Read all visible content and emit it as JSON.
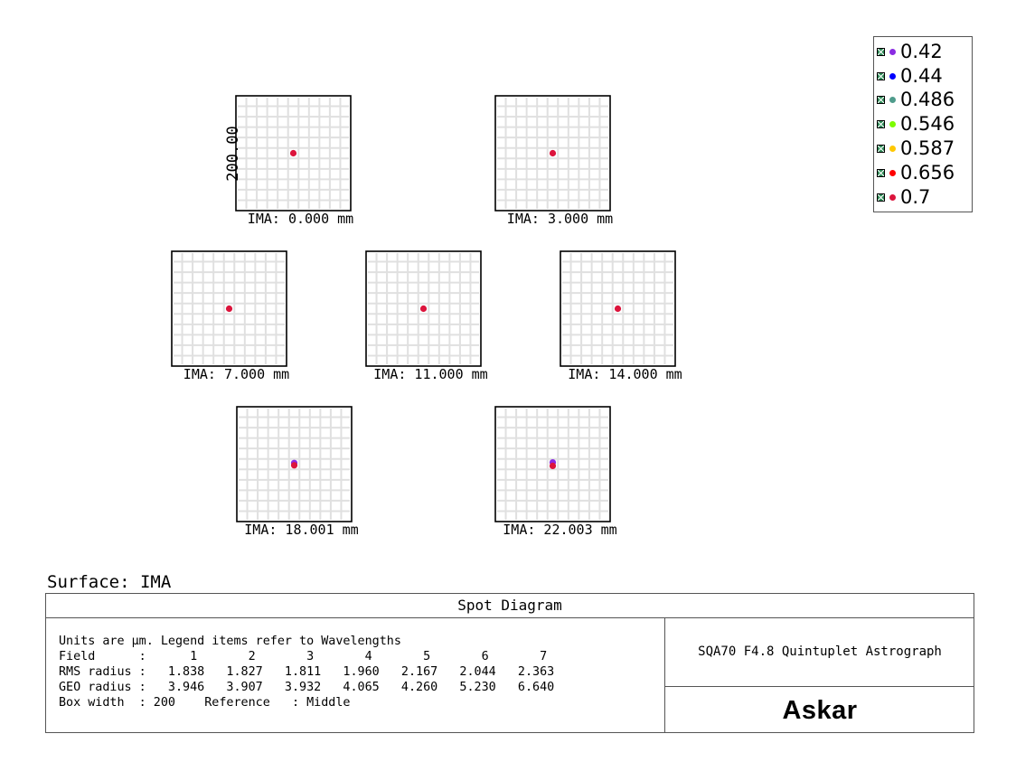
{
  "surface_label": "Surface: IMA",
  "panel": {
    "title": "Spot Diagram",
    "lines": [
      "Units are µm. Legend items refer to Wavelengths",
      "Field      :      1       2       3       4       5       6       7",
      "RMS radius :   1.838   1.827   1.811   1.960   2.167   2.044   2.363",
      "GEO radius :   3.946   3.907   3.932   4.065   4.260   5.230   6.640",
      "Box width  : 200    Reference   : Middle"
    ],
    "lens_name": "SQA70 F4.8 Quintuplet Astrograph",
    "brand": "Askar"
  },
  "legend": [
    {
      "label": "0.42",
      "color": "#8a2be2"
    },
    {
      "label": "0.44",
      "color": "#0000ff"
    },
    {
      "label": "0.486",
      "color": "#4f9c8c"
    },
    {
      "label": "0.546",
      "color": "#7cfc00"
    },
    {
      "label": "0.587",
      "color": "#ffc800"
    },
    {
      "label": "0.656",
      "color": "#ff0000"
    },
    {
      "label": "0.7",
      "color": "#dc143c"
    }
  ],
  "chart_data": {
    "type": "scatter",
    "box_width_um": 200,
    "axis_label": "200.00",
    "grid": true,
    "legend_position": "top-right",
    "fields": [
      {
        "label": "IMA: 0.000 mm",
        "spots": [
          [
            0,
            0
          ]
        ]
      },
      {
        "label": "IMA: 3.000 mm",
        "spots": [
          [
            0,
            0
          ]
        ]
      },
      {
        "label": "IMA: 7.000 mm",
        "spots": [
          [
            0,
            0
          ]
        ]
      },
      {
        "label": "IMA: 11.000 mm",
        "spots": [
          [
            0,
            0
          ]
        ]
      },
      {
        "label": "IMA: 14.000 mm",
        "spots": [
          [
            0,
            0
          ]
        ]
      },
      {
        "label": "IMA: 18.001 mm",
        "spots": [
          [
            0,
            2
          ],
          [
            0,
            -2
          ]
        ]
      },
      {
        "label": "IMA: 22.003 mm",
        "spots": [
          [
            0,
            3
          ],
          [
            0,
            -3
          ]
        ]
      }
    ]
  }
}
